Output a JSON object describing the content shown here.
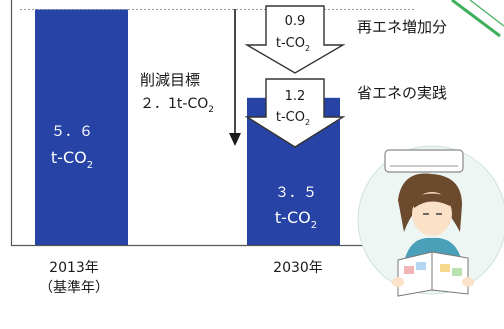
{
  "chart_data": {
    "type": "bar",
    "categories": [
      "2013年",
      "2030年"
    ],
    "category_sublabels": [
      "（基準年）",
      ""
    ],
    "values": [
      5.6,
      3.5
    ],
    "value_labels": [
      {
        "num": "５．６",
        "unit": "t-CO",
        "sub": "2"
      },
      {
        "num": "３．５",
        "unit": "t-CO",
        "sub": "2"
      }
    ],
    "bar_color": "#2743a6",
    "ylim": [
      0,
      5.6
    ],
    "grid": false,
    "reduction": {
      "label": "削減目標",
      "amount": "２．1t-CO",
      "sub": "2",
      "steps": [
        {
          "amount": "0.9",
          "unit": "t-CO",
          "sub": "2",
          "label": "再エネ増加分"
        },
        {
          "amount": "1.2",
          "unit": "t-CO",
          "sub": "2",
          "label": "省エネの実践"
        }
      ]
    }
  },
  "colors": {
    "bar": "#2743a6",
    "bar_text": "#ffffff",
    "arrow_stroke": "#333333",
    "axis": "#555555",
    "dotted_line": "#9a9a9a",
    "corner_accent": "#3fb05a"
  },
  "illustration": {
    "icon": "person-reading-under-air-conditioner-icon"
  }
}
